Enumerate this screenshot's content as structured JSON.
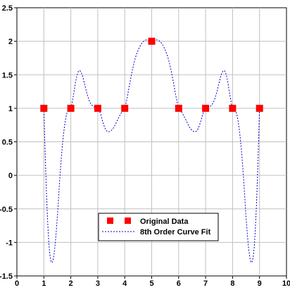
{
  "chart_data": {
    "type": "scatter",
    "title": "",
    "xlabel": "",
    "ylabel": "",
    "xlim": [
      0,
      10
    ],
    "ylim": [
      -1.5,
      2.5
    ],
    "x_ticks": [
      0,
      1,
      2,
      3,
      4,
      5,
      6,
      7,
      8,
      9,
      10
    ],
    "y_ticks": [
      -1.5,
      -1,
      -0.5,
      0,
      0.5,
      1,
      1.5,
      2,
      2.5
    ],
    "x_tick_labels": [
      "0",
      "1",
      "2",
      "3",
      "4",
      "5",
      "6",
      "7",
      "8",
      "9",
      "10"
    ],
    "y_tick_labels": [
      "-1.5",
      "-1",
      "-0.5",
      "0",
      "0.5",
      "1",
      "1.5",
      "2",
      "2.5"
    ],
    "grid": true,
    "legend_position": "bottom-center",
    "series": [
      {
        "name": "Original Data",
        "kind": "markers",
        "marker": "square",
        "color": "#ff0000",
        "x": [
          1,
          2,
          3,
          4,
          5,
          6,
          7,
          8,
          9
        ],
        "y": [
          1,
          1,
          1,
          1,
          2,
          1,
          1,
          1,
          1
        ]
      },
      {
        "name": "8th Order Curve Fit",
        "kind": "line",
        "line_style": "dashed",
        "color": "#0000cc",
        "x": [
          1,
          1.1,
          1.2,
          1.3,
          1.4,
          1.5,
          1.6,
          1.7,
          1.8,
          1.9,
          2,
          2.1,
          2.2,
          2.3,
          2.4,
          2.5,
          2.6,
          2.7,
          2.8,
          2.9,
          3,
          3.1,
          3.2,
          3.3,
          3.4,
          3.5,
          3.6,
          3.7,
          3.8,
          3.9,
          4,
          4.1,
          4.2,
          4.3,
          4.4,
          4.5,
          4.6,
          4.7,
          4.8,
          4.9,
          5,
          5.1,
          5.2,
          5.3,
          5.4,
          5.5,
          5.6,
          5.7,
          5.8,
          5.9,
          6,
          6.1,
          6.2,
          6.3,
          6.4,
          6.5,
          6.6,
          6.7,
          6.8,
          6.9,
          7,
          7.1,
          7.2,
          7.3,
          7.4,
          7.5,
          7.6,
          7.7,
          7.8,
          7.9,
          8,
          8.1,
          8.2,
          8.3,
          8.4,
          8.5,
          8.6,
          8.7,
          8.8,
          8.9,
          9
        ],
        "y": [
          1,
          -0.3,
          -1.08,
          -1.3,
          -1.1,
          -0.62,
          0.0,
          0.5,
          0.82,
          0.98,
          1,
          1.2,
          1.44,
          1.56,
          1.52,
          1.38,
          1.22,
          1.1,
          1.04,
          1.01,
          1,
          0.92,
          0.78,
          0.68,
          0.65,
          0.67,
          0.72,
          0.8,
          0.88,
          0.95,
          1,
          1.18,
          1.4,
          1.6,
          1.76,
          1.87,
          1.95,
          2.0,
          2.02,
          2.01,
          2,
          2.01,
          2.02,
          2.0,
          1.95,
          1.87,
          1.76,
          1.6,
          1.4,
          1.18,
          1,
          0.95,
          0.88,
          0.8,
          0.72,
          0.67,
          0.65,
          0.68,
          0.78,
          0.92,
          1,
          1.01,
          1.04,
          1.1,
          1.22,
          1.38,
          1.52,
          1.56,
          1.44,
          1.2,
          1,
          0.98,
          0.82,
          0.5,
          0.0,
          -0.62,
          -1.1,
          -1.3,
          -1.08,
          -0.3,
          1
        ]
      }
    ]
  },
  "legend": {
    "items": [
      {
        "label": "Original Data"
      },
      {
        "label": "8th Order Curve Fit"
      }
    ]
  }
}
